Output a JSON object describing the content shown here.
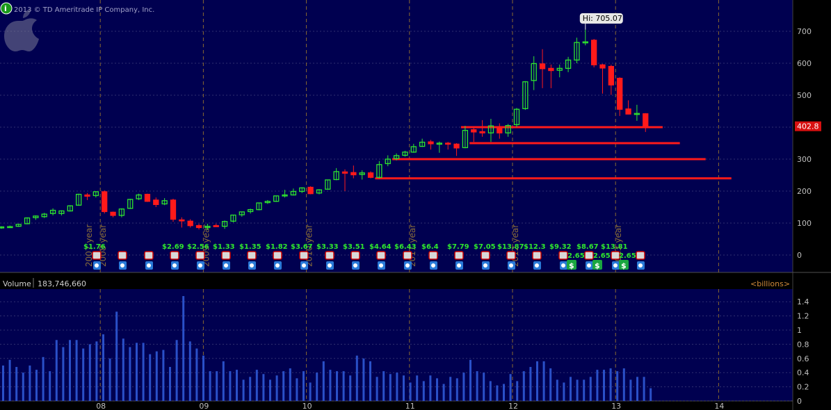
{
  "header": {
    "copyright": "2013 © TD Ameritrade IP Company, Inc.",
    "info_icon": "info-icon",
    "logo_icon": "apple-logo-icon"
  },
  "price_panel": {
    "hi_label": "Hi: 705.07",
    "last_price": "402.8",
    "y_ticks": [
      "700",
      "600",
      "500",
      "400",
      "300",
      "200",
      "100",
      "0"
    ],
    "year_labels": [
      "2007 year",
      "2008 year",
      "2009 year",
      "2010 year",
      "2011 year",
      "2012 year",
      "2013 year"
    ],
    "eps_labels": [
      "$1.76",
      "$2.69",
      "$2.56",
      "$1.33",
      "$1.35",
      "$1.82",
      "$3.67",
      "$3.33",
      "$3.51",
      "$4.64",
      "$6.43",
      "$6.4",
      "$7.79",
      "$7.05",
      "$13.87",
      "$12.3",
      "$9.32",
      "$8.67",
      "$13.81"
    ],
    "div_labels": [
      "2.65",
      "2.65",
      "2.65"
    ]
  },
  "volume_panel": {
    "label": "Volume",
    "value": "183,746,660",
    "units": "<billions>",
    "y_ticks": [
      "1.4",
      "1.2",
      "1",
      "0.8",
      "0.6",
      "0.4",
      "0.2",
      "0"
    ]
  },
  "x_axis": {
    "ticks": [
      "08",
      "09",
      "10",
      "11",
      "12",
      "13",
      "14"
    ]
  },
  "colors": {
    "up": "#2ee62e",
    "down": "#ff1a1a",
    "background": "#000050",
    "volume_bar": "#2a50c8",
    "support_line": "#ff1a1a"
  },
  "chart_data": {
    "type": "candlestick",
    "price_range": [
      0,
      700
    ],
    "candles": [
      {
        "t": "2007-01",
        "o": 86,
        "h": 90,
        "l": 82,
        "c": 88
      },
      {
        "t": "2007-02",
        "o": 88,
        "h": 92,
        "l": 85,
        "c": 89
      },
      {
        "t": "2007-03",
        "o": 90,
        "h": 98,
        "l": 88,
        "c": 96
      },
      {
        "t": "2007-04",
        "o": 98,
        "h": 118,
        "l": 96,
        "c": 116
      },
      {
        "t": "2007-05",
        "o": 117,
        "h": 124,
        "l": 110,
        "c": 122
      },
      {
        "t": "2007-06",
        "o": 120,
        "h": 132,
        "l": 116,
        "c": 128
      },
      {
        "t": "2007-07",
        "o": 130,
        "h": 146,
        "l": 124,
        "c": 140
      },
      {
        "t": "2007-08",
        "o": 130,
        "h": 140,
        "l": 124,
        "c": 138
      },
      {
        "t": "2007-09",
        "o": 138,
        "h": 156,
        "l": 136,
        "c": 154
      },
      {
        "t": "2007-10",
        "o": 156,
        "h": 192,
        "l": 154,
        "c": 190
      },
      {
        "t": "2007-11",
        "o": 188,
        "h": 194,
        "l": 172,
        "c": 184
      },
      {
        "t": "2007-12",
        "o": 186,
        "h": 200,
        "l": 180,
        "c": 198
      },
      {
        "t": "2008-01",
        "o": 198,
        "h": 202,
        "l": 130,
        "c": 136
      },
      {
        "t": "2008-02",
        "o": 134,
        "h": 136,
        "l": 118,
        "c": 124
      },
      {
        "t": "2008-03",
        "o": 124,
        "h": 146,
        "l": 118,
        "c": 144
      },
      {
        "t": "2008-04",
        "o": 146,
        "h": 176,
        "l": 144,
        "c": 174
      },
      {
        "t": "2008-05",
        "o": 176,
        "h": 192,
        "l": 172,
        "c": 188
      },
      {
        "t": "2008-06",
        "o": 190,
        "h": 192,
        "l": 166,
        "c": 168
      },
      {
        "t": "2008-07",
        "o": 172,
        "h": 180,
        "l": 150,
        "c": 158
      },
      {
        "t": "2008-08",
        "o": 160,
        "h": 178,
        "l": 156,
        "c": 170
      },
      {
        "t": "2008-09",
        "o": 172,
        "h": 176,
        "l": 104,
        "c": 112
      },
      {
        "t": "2008-10",
        "o": 110,
        "h": 118,
        "l": 86,
        "c": 108
      },
      {
        "t": "2008-11",
        "o": 106,
        "h": 112,
        "l": 86,
        "c": 92
      },
      {
        "t": "2008-12",
        "o": 92,
        "h": 98,
        "l": 80,
        "c": 86
      },
      {
        "t": "2009-01",
        "o": 86,
        "h": 98,
        "l": 78,
        "c": 90
      },
      {
        "t": "2009-02",
        "o": 92,
        "h": 98,
        "l": 88,
        "c": 90
      },
      {
        "t": "2009-03",
        "o": 90,
        "h": 108,
        "l": 82,
        "c": 105
      },
      {
        "t": "2009-04",
        "o": 106,
        "h": 126,
        "l": 102,
        "c": 125
      },
      {
        "t": "2009-05",
        "o": 126,
        "h": 136,
        "l": 120,
        "c": 135
      },
      {
        "t": "2009-06",
        "o": 136,
        "h": 145,
        "l": 130,
        "c": 142
      },
      {
        "t": "2009-07",
        "o": 142,
        "h": 164,
        "l": 140,
        "c": 163
      },
      {
        "t": "2009-08",
        "o": 164,
        "h": 172,
        "l": 160,
        "c": 168
      },
      {
        "t": "2009-09",
        "o": 168,
        "h": 186,
        "l": 166,
        "c": 185
      },
      {
        "t": "2009-10",
        "o": 186,
        "h": 204,
        "l": 180,
        "c": 188
      },
      {
        "t": "2009-11",
        "o": 188,
        "h": 208,
        "l": 186,
        "c": 199
      },
      {
        "t": "2009-12",
        "o": 199,
        "h": 212,
        "l": 194,
        "c": 210
      },
      {
        "t": "2010-01",
        "o": 212,
        "h": 215,
        "l": 190,
        "c": 192
      },
      {
        "t": "2010-02",
        "o": 194,
        "h": 206,
        "l": 190,
        "c": 204
      },
      {
        "t": "2010-03",
        "o": 206,
        "h": 236,
        "l": 204,
        "c": 235
      },
      {
        "t": "2010-04",
        "o": 236,
        "h": 272,
        "l": 234,
        "c": 261
      },
      {
        "t": "2010-05",
        "o": 260,
        "h": 268,
        "l": 200,
        "c": 256
      },
      {
        "t": "2010-06",
        "o": 258,
        "h": 280,
        "l": 240,
        "c": 251
      },
      {
        "t": "2010-07",
        "o": 252,
        "h": 265,
        "l": 236,
        "c": 257
      },
      {
        "t": "2010-08",
        "o": 257,
        "h": 262,
        "l": 240,
        "c": 243
      },
      {
        "t": "2010-09",
        "o": 243,
        "h": 294,
        "l": 240,
        "c": 283
      },
      {
        "t": "2010-10",
        "o": 286,
        "h": 312,
        "l": 278,
        "c": 300
      },
      {
        "t": "2010-11",
        "o": 302,
        "h": 318,
        "l": 296,
        "c": 311
      },
      {
        "t": "2010-12",
        "o": 312,
        "h": 326,
        "l": 308,
        "c": 322
      },
      {
        "t": "2011-01",
        "o": 322,
        "h": 348,
        "l": 320,
        "c": 339
      },
      {
        "t": "2011-02",
        "o": 340,
        "h": 364,
        "l": 338,
        "c": 353
      },
      {
        "t": "2011-03",
        "o": 354,
        "h": 360,
        "l": 330,
        "c": 348
      },
      {
        "t": "2011-04",
        "o": 348,
        "h": 355,
        "l": 320,
        "c": 350
      },
      {
        "t": "2011-05",
        "o": 350,
        "h": 354,
        "l": 330,
        "c": 347
      },
      {
        "t": "2011-06",
        "o": 347,
        "h": 350,
        "l": 310,
        "c": 335
      },
      {
        "t": "2011-07",
        "o": 336,
        "h": 404,
        "l": 334,
        "c": 390
      },
      {
        "t": "2011-08",
        "o": 392,
        "h": 400,
        "l": 354,
        "c": 385
      },
      {
        "t": "2011-09",
        "o": 386,
        "h": 422,
        "l": 370,
        "c": 382
      },
      {
        "t": "2011-10",
        "o": 382,
        "h": 426,
        "l": 354,
        "c": 404
      },
      {
        "t": "2011-11",
        "o": 400,
        "h": 412,
        "l": 364,
        "c": 382
      },
      {
        "t": "2011-12",
        "o": 382,
        "h": 410,
        "l": 370,
        "c": 405
      },
      {
        "t": "2012-01",
        "o": 408,
        "h": 460,
        "l": 400,
        "c": 456
      },
      {
        "t": "2012-02",
        "o": 458,
        "h": 544,
        "l": 454,
        "c": 542
      },
      {
        "t": "2012-03",
        "o": 546,
        "h": 622,
        "l": 516,
        "c": 599
      },
      {
        "t": "2012-04",
        "o": 598,
        "h": 644,
        "l": 522,
        "c": 583
      },
      {
        "t": "2012-05",
        "o": 584,
        "h": 596,
        "l": 522,
        "c": 577
      },
      {
        "t": "2012-06",
        "o": 578,
        "h": 596,
        "l": 556,
        "c": 584
      },
      {
        "t": "2012-07",
        "o": 584,
        "h": 620,
        "l": 572,
        "c": 610
      },
      {
        "t": "2012-08",
        "o": 610,
        "h": 680,
        "l": 600,
        "c": 665
      },
      {
        "t": "2012-09",
        "o": 666,
        "h": 705.07,
        "l": 656,
        "c": 667
      },
      {
        "t": "2012-10",
        "o": 672,
        "h": 676,
        "l": 587,
        "c": 595
      },
      {
        "t": "2012-11",
        "o": 595,
        "h": 598,
        "l": 505,
        "c": 585
      },
      {
        "t": "2012-12",
        "o": 590,
        "h": 595,
        "l": 501,
        "c": 532
      },
      {
        "t": "2013-01",
        "o": 553,
        "h": 556,
        "l": 435,
        "c": 456
      },
      {
        "t": "2013-02",
        "o": 457,
        "h": 484,
        "l": 440,
        "c": 441
      },
      {
        "t": "2013-03",
        "o": 441,
        "h": 470,
        "l": 420,
        "c": 443
      },
      {
        "t": "2013-04",
        "o": 442,
        "h": 444,
        "l": 385,
        "c": 402.8
      }
    ],
    "support_lines": [
      {
        "from": "2011-07",
        "to": "2013-06",
        "y": 400
      },
      {
        "from": "2011-08",
        "to": "2013-08",
        "y": 350
      },
      {
        "from": "2010-11",
        "to": "2013-11",
        "y": 300
      },
      {
        "from": "2010-09",
        "to": "2014-02",
        "y": 240
      }
    ],
    "volume": [
      0.5,
      0.58,
      0.48,
      0.4,
      0.5,
      0.44,
      0.62,
      0.42,
      0.86,
      0.76,
      0.86,
      0.86,
      0.74,
      0.8,
      0.84,
      0.94,
      0.6,
      1.26,
      0.88,
      0.76,
      0.82,
      0.82,
      0.66,
      0.7,
      0.72,
      0.48,
      0.86,
      1.48,
      0.84,
      0.74,
      0.64,
      0.42,
      0.42,
      0.56,
      0.42,
      0.44,
      0.3,
      0.34,
      0.44,
      0.38,
      0.3,
      0.36,
      0.42,
      0.46,
      0.32,
      0.42,
      0.26,
      0.4,
      0.56,
      0.44,
      0.42,
      0.42,
      0.36,
      0.64,
      0.6,
      0.56,
      0.34,
      0.42,
      0.38,
      0.4,
      0.36,
      0.26,
      0.36,
      0.28,
      0.36,
      0.32,
      0.24,
      0.34,
      0.32,
      0.4,
      0.58,
      0.42,
      0.4,
      0.28,
      0.22,
      0.24,
      0.38,
      0.28,
      0.42,
      0.48,
      0.56,
      0.56,
      0.46,
      0.3,
      0.26,
      0.34,
      0.3,
      0.3,
      0.34,
      0.44,
      0.44,
      0.46,
      0.42,
      0.46,
      0.3,
      0.34,
      0.34,
      0.18
    ],
    "volume_range": [
      0,
      1.4
    ]
  }
}
